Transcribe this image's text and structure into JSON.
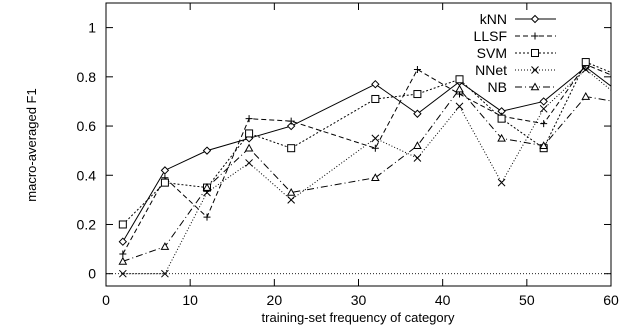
{
  "chart_data": {
    "type": "line",
    "title": "",
    "xlabel": "training-set frequency of category",
    "ylabel": "macro-averaged F1",
    "xlim": [
      0,
      60
    ],
    "ylim": [
      -0.05,
      1.1
    ],
    "xticks": [
      0,
      10,
      20,
      30,
      40,
      50,
      60
    ],
    "yticks": [
      0,
      0.2,
      0.4,
      0.6,
      0.8,
      1
    ],
    "grid": false,
    "legend_position": "top-right",
    "x": [
      2,
      7,
      12,
      17,
      22,
      32,
      37,
      42,
      47,
      52,
      57,
      62
    ],
    "series": [
      {
        "name": "kNN",
        "marker": "diamond",
        "dash": "solid",
        "values": [
          0.13,
          0.42,
          0.5,
          0.55,
          0.6,
          0.77,
          0.65,
          0.78,
          0.66,
          0.7,
          0.84,
          0.71
        ]
      },
      {
        "name": "LLSF",
        "marker": "plus",
        "dash": "dashed",
        "values": [
          0.08,
          0.39,
          0.23,
          0.63,
          0.62,
          0.51,
          0.83,
          0.73,
          0.64,
          0.61,
          0.85,
          0.78
        ]
      },
      {
        "name": "SVM",
        "marker": "square",
        "dash": "dotted",
        "values": [
          0.2,
          0.37,
          0.35,
          0.57,
          0.51,
          0.71,
          0.73,
          0.79,
          0.63,
          0.51,
          0.86,
          0.79
        ]
      },
      {
        "name": "NNet",
        "marker": "x",
        "dash": "fine-dotted",
        "values": [
          0.0,
          0.0,
          0.33,
          0.45,
          0.3,
          0.55,
          0.47,
          0.68,
          0.37,
          0.67,
          0.83,
          0.69
        ]
      },
      {
        "name": "NB",
        "marker": "triangle",
        "dash": "dash-dot",
        "values": [
          0.05,
          0.11,
          0.35,
          0.51,
          0.33,
          0.39,
          0.52,
          0.75,
          0.55,
          0.52,
          0.72,
          0.69
        ]
      }
    ]
  }
}
